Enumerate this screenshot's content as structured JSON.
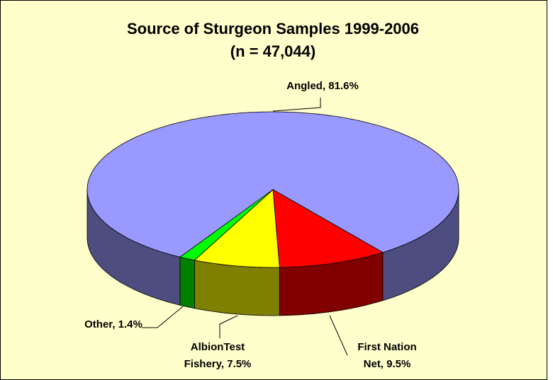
{
  "chart_data": {
    "type": "pie3d",
    "title": "Source of Sturgeon Samples 1999-2006",
    "subtitle": "(n = 47,044)",
    "values": [
      81.6,
      9.5,
      7.5,
      1.4
    ],
    "labels": [
      [
        "Angled, 81.6%"
      ],
      [
        "First Nation",
        "Net, 9.5%"
      ],
      [
        "AlbionTest",
        "Fishery, 7.5%"
      ],
      [
        "Other, 1.4%"
      ]
    ],
    "colors": [
      "#9999FF",
      "#FF0000",
      "#FFFF00",
      "#00FF00"
    ],
    "side_colors": [
      "#4D4D80",
      "#800000",
      "#808000",
      "#008000"
    ]
  }
}
